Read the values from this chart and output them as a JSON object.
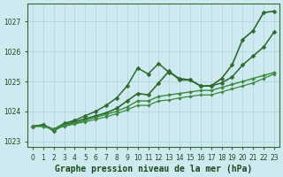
{
  "xlabel": "Graphe pression niveau de la mer (hPa)",
  "x": [
    0,
    1,
    2,
    3,
    4,
    5,
    6,
    7,
    8,
    9,
    10,
    11,
    12,
    13,
    14,
    15,
    16,
    17,
    18,
    19,
    20,
    21,
    22,
    23
  ],
  "lines": [
    {
      "y": [
        1023.5,
        1023.55,
        1023.35,
        1023.55,
        1023.65,
        1023.75,
        1023.85,
        1023.95,
        1024.1,
        1024.35,
        1024.6,
        1024.55,
        1024.95,
        1025.35,
        1025.05,
        1025.05,
        1024.85,
        1024.85,
        1025.1,
        1025.55,
        1026.4,
        1026.7,
        1027.3,
        1027.35
      ],
      "color": "#2d6a2d",
      "lw": 1.2,
      "marker": "D",
      "ms": 2.5
    },
    {
      "y": [
        1023.5,
        1023.55,
        1023.4,
        1023.6,
        1023.7,
        1023.85,
        1024.0,
        1024.2,
        1024.45,
        1024.85,
        1025.45,
        1025.25,
        1025.6,
        1025.3,
        1025.1,
        1025.05,
        1024.85,
        1024.85,
        1024.95,
        1025.15,
        1025.55,
        1025.85,
        1026.15,
        1026.65
      ],
      "color": "#2d6a2d",
      "lw": 1.1,
      "marker": "D",
      "ms": 2.5
    },
    {
      "y": [
        1023.5,
        1023.5,
        1023.4,
        1023.55,
        1023.6,
        1023.7,
        1023.8,
        1023.9,
        1024.0,
        1024.15,
        1024.35,
        1024.35,
        1024.5,
        1024.55,
        1024.6,
        1024.65,
        1024.7,
        1024.7,
        1024.8,
        1024.9,
        1025.0,
        1025.1,
        1025.2,
        1025.3
      ],
      "color": "#3a8a3a",
      "lw": 1.0,
      "marker": "D",
      "ms": 2.0
    },
    {
      "y": [
        1023.5,
        1023.5,
        1023.4,
        1023.5,
        1023.58,
        1023.65,
        1023.73,
        1023.82,
        1023.92,
        1024.05,
        1024.2,
        1024.2,
        1024.35,
        1024.38,
        1024.45,
        1024.5,
        1024.55,
        1024.55,
        1024.65,
        1024.75,
        1024.85,
        1024.95,
        1025.1,
        1025.25
      ],
      "color": "#3a8a3a",
      "lw": 0.9,
      "marker": "D",
      "ms": 1.8
    }
  ],
  "ylim": [
    1022.8,
    1027.6
  ],
  "yticks": [
    1023,
    1024,
    1025,
    1026,
    1027
  ],
  "xticks": [
    0,
    1,
    2,
    3,
    4,
    5,
    6,
    7,
    8,
    9,
    10,
    11,
    12,
    13,
    14,
    15,
    16,
    17,
    18,
    19,
    20,
    21,
    22,
    23
  ],
  "xlim": [
    -0.5,
    23.5
  ],
  "bg_color": "#ceeaf0",
  "grid_color": "#aad4dc",
  "axis_color": "#2e6b2e",
  "label_color": "#1a4a1a",
  "title_fontsize": 7.0,
  "tick_fontsize": 5.5
}
